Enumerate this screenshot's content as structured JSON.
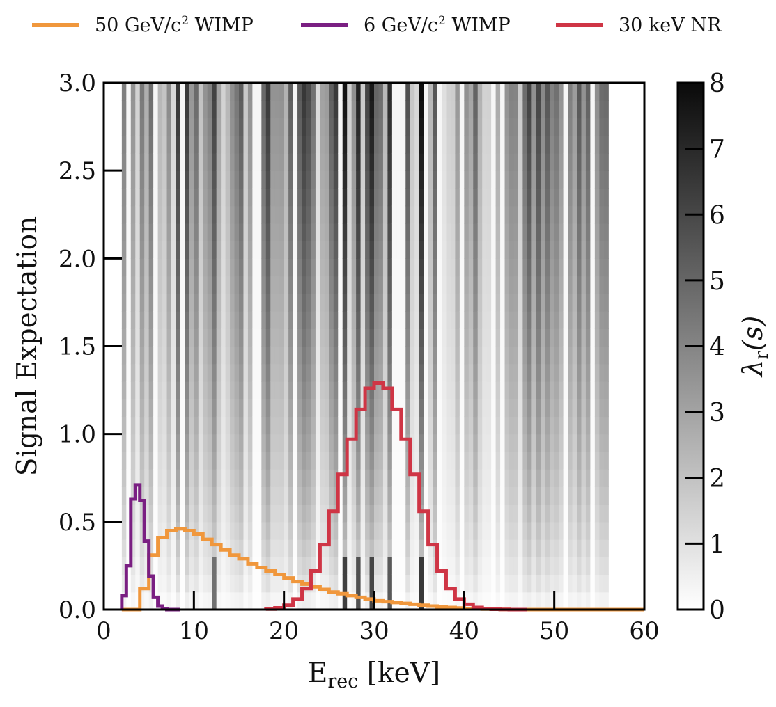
{
  "chart_data": {
    "type": "line",
    "xlabel": "E_rec [keV]",
    "ylabel": "Signal Expectation",
    "xlim": [
      0,
      60
    ],
    "ylim": [
      0,
      3
    ],
    "x_ticks": [
      "0",
      "10",
      "20",
      "30",
      "40",
      "50",
      "60"
    ],
    "y_ticks": [
      "0.0",
      "0.5",
      "1.0",
      "1.5",
      "2.0",
      "2.5",
      "3.0"
    ],
    "colorbar": {
      "label": "λr(s)",
      "range": [
        0,
        8
      ],
      "ticks": [
        "0",
        "1",
        "2",
        "3",
        "4",
        "5",
        "6",
        "7",
        "8"
      ],
      "colormap": "Greys"
    },
    "legend_position": "top",
    "series": [
      {
        "name": "50 GeV/c² WIMP",
        "color": "#f0973c",
        "step_width": 1,
        "x": [
          2,
          3,
          4,
          5,
          6,
          7,
          8,
          9,
          10,
          11,
          12,
          13,
          14,
          15,
          16,
          17,
          18,
          19,
          20,
          21,
          22,
          23,
          24,
          25,
          26,
          27,
          28,
          29,
          30,
          31,
          32,
          33,
          34,
          35,
          36,
          37,
          38,
          39,
          40,
          41,
          42,
          43,
          44,
          45,
          46,
          47,
          48,
          49,
          50,
          51,
          52,
          53,
          54,
          55,
          56,
          57,
          58,
          59
        ],
        "values": [
          0,
          0,
          0.12,
          0.31,
          0.41,
          0.45,
          0.46,
          0.45,
          0.43,
          0.4,
          0.37,
          0.34,
          0.31,
          0.29,
          0.26,
          0.24,
          0.22,
          0.2,
          0.18,
          0.16,
          0.145,
          0.13,
          0.115,
          0.1,
          0.09,
          0.08,
          0.07,
          0.06,
          0.05,
          0.045,
          0.04,
          0.035,
          0.03,
          0.025,
          0.02,
          0.015,
          0.012,
          0.009,
          0.006,
          0.004,
          0.003,
          0.002,
          0.001,
          0,
          0,
          0,
          0,
          0,
          0,
          0,
          0,
          0,
          0,
          0,
          0,
          0,
          0,
          0
        ]
      },
      {
        "name": "6 GeV/c² WIMP",
        "color": "#7a1f82",
        "step_width": 0.5,
        "x": [
          2,
          2.5,
          3,
          3.5,
          4,
          4.5,
          5,
          5.5,
          6,
          6.5,
          7,
          7.5,
          8
        ],
        "values": [
          0.08,
          0.25,
          0.63,
          0.71,
          0.62,
          0.39,
          0.19,
          0.07,
          0.02,
          0.005,
          0,
          0,
          0
        ]
      },
      {
        "name": "30 keV NR",
        "color": "#cf3545",
        "step_width": 1,
        "x": [
          18,
          19,
          20,
          21,
          22,
          23,
          24,
          25,
          26,
          27,
          28,
          29,
          30,
          31,
          32,
          33,
          34,
          35,
          36,
          37,
          38,
          39,
          40,
          41,
          42,
          43,
          44,
          45,
          46
        ],
        "values": [
          0.003,
          0.01,
          0.025,
          0.06,
          0.12,
          0.22,
          0.37,
          0.56,
          0.77,
          0.97,
          1.14,
          1.26,
          1.29,
          1.26,
          1.14,
          0.97,
          0.77,
          0.56,
          0.37,
          0.22,
          0.12,
          0.06,
          0.03,
          0.012,
          0.005,
          0.002,
          0.001,
          0,
          0
        ]
      }
    ],
    "heatmap_dark_columns": [
      {
        "x": 27,
        "value": 6.0
      },
      {
        "x": 28.5,
        "value": 5.5
      },
      {
        "x": 30,
        "value": 5.8
      },
      {
        "x": 32,
        "value": 5.2
      },
      {
        "x": 35.5,
        "value": 6.2
      },
      {
        "x": 12.5,
        "value": 4.5
      }
    ]
  },
  "legend": {
    "item1_pre": "50 GeV/c",
    "item1_post": " WIMP",
    "item2_pre": "6 GeV/c",
    "item2_post": " WIMP",
    "item3": "30 keV NR",
    "sup": "2"
  }
}
